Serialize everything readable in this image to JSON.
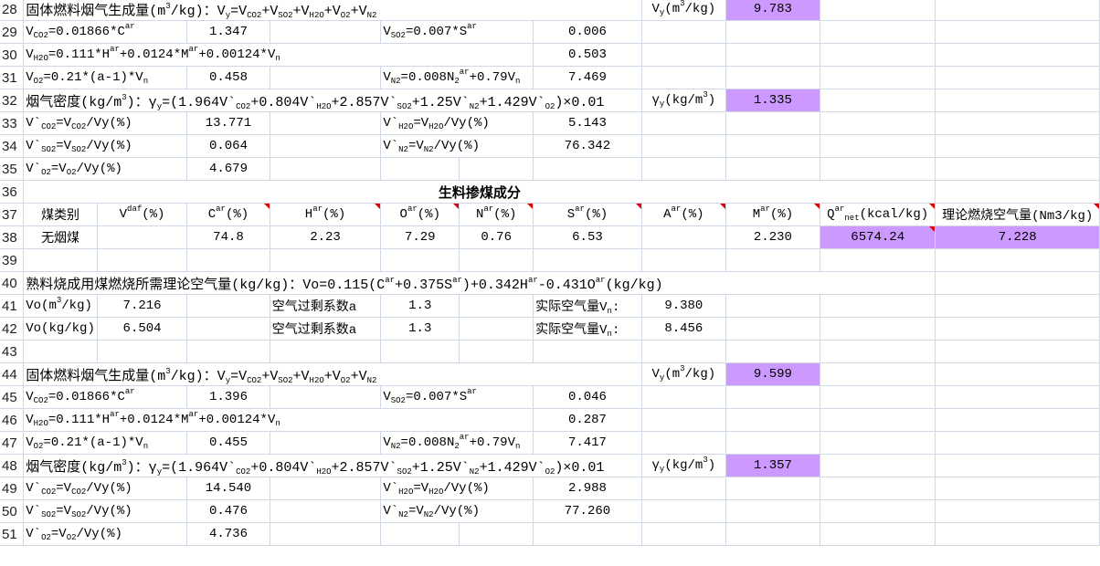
{
  "colors": {
    "highlight": "#cc99ff",
    "comment_marker": "#e00000",
    "grid": "#d0d7e5"
  },
  "rows": [
    {
      "num": "28",
      "cells": [
        {
          "span": 7,
          "text": "固体燃料烟气生成量(m^{3}/kg)：V_{y}=V_{CO2}+V_{SO2}+V_{H2O}+V_{O2}+V_{N2}",
          "kind": "big"
        },
        {
          "text": "V_{y}(m^{3}/kg)",
          "kind": "value"
        },
        {
          "text": "9.783",
          "kind": "value",
          "hl": true
        },
        {
          "text": ""
        },
        {
          "text": ""
        }
      ]
    },
    {
      "num": "29",
      "cells": [
        {
          "span": 2,
          "text": "V_{CO2}=0.01866*C^{ar}",
          "kind": "label"
        },
        {
          "text": "1.347",
          "kind": "value"
        },
        {
          "text": ""
        },
        {
          "span": 2,
          "text": "V_{SO2}=0.007*S^{ar}",
          "kind": "label"
        },
        {
          "text": "0.006",
          "kind": "value"
        },
        {
          "text": ""
        },
        {
          "text": ""
        },
        {
          "text": ""
        },
        {
          "text": ""
        }
      ]
    },
    {
      "num": "30",
      "cells": [
        {
          "span": 6,
          "text": "V_{H2O}=0.111*H^{ar}+0.0124*M^{ar}+0.00124*V_{n}",
          "kind": "label"
        },
        {
          "text": "0.503",
          "kind": "value"
        },
        {
          "text": ""
        },
        {
          "text": ""
        },
        {
          "text": ""
        },
        {
          "text": ""
        }
      ]
    },
    {
      "num": "31",
      "cells": [
        {
          "span": 2,
          "text": "V_{O2}=0.21*(a-1)*V_{n}",
          "kind": "label"
        },
        {
          "text": "0.458",
          "kind": "value"
        },
        {
          "text": ""
        },
        {
          "span": 2,
          "text": "V_{N2}=0.008N_{2}^{ar}+0.79V_{n}",
          "kind": "label"
        },
        {
          "text": "7.469",
          "kind": "value"
        },
        {
          "text": ""
        },
        {
          "text": ""
        },
        {
          "text": ""
        },
        {
          "text": ""
        }
      ]
    },
    {
      "num": "32",
      "cells": [
        {
          "span": 7,
          "text": "烟气密度(kg/m^{3})：γ_{y}=(1.964V`_{CO2}+0.804V`_{H2O}+2.857V`_{SO2}+1.25V`_{N2}+1.429V`_{O2})×0.01",
          "kind": "big"
        },
        {
          "text": "γ_{y}(kg/m^{3})",
          "kind": "value"
        },
        {
          "text": "1.335",
          "kind": "value",
          "hl": true
        },
        {
          "text": ""
        },
        {
          "text": ""
        }
      ]
    },
    {
      "num": "33",
      "cells": [
        {
          "span": 2,
          "text": "V`_{CO2}=V_{CO2}/Vy(%)",
          "kind": "label"
        },
        {
          "text": "13.771",
          "kind": "value"
        },
        {
          "text": ""
        },
        {
          "span": 2,
          "text": "V`_{H2O}=V_{H2O}/Vy(%)",
          "kind": "label"
        },
        {
          "text": "5.143",
          "kind": "value"
        },
        {
          "text": ""
        },
        {
          "text": ""
        },
        {
          "text": ""
        },
        {
          "text": ""
        }
      ]
    },
    {
      "num": "34",
      "cells": [
        {
          "span": 2,
          "text": "V`_{SO2}=V_{SO2}/Vy(%)",
          "kind": "label"
        },
        {
          "text": "0.064",
          "kind": "value"
        },
        {
          "text": ""
        },
        {
          "span": 2,
          "text": "V`_{N2}=V_{N2}/Vy(%)",
          "kind": "label"
        },
        {
          "text": "76.342",
          "kind": "value"
        },
        {
          "text": ""
        },
        {
          "text": ""
        },
        {
          "text": ""
        },
        {
          "text": ""
        }
      ]
    },
    {
      "num": "35",
      "cells": [
        {
          "span": 2,
          "text": "V`_{O2}=V_{O2}/Vy(%)",
          "kind": "label"
        },
        {
          "text": "4.679",
          "kind": "value"
        },
        {
          "text": ""
        },
        {
          "text": ""
        },
        {
          "text": ""
        },
        {
          "text": ""
        },
        {
          "text": ""
        },
        {
          "text": ""
        },
        {
          "text": ""
        },
        {
          "text": ""
        }
      ]
    },
    {
      "num": "36",
      "cells": [
        {
          "span": 10,
          "text": "生料掺煤成分",
          "kind": "title"
        },
        {
          "text": ""
        }
      ]
    },
    {
      "num": "37",
      "cells": [
        {
          "text": "煤类别",
          "kind": "header"
        },
        {
          "text": "V^{daf}(%)",
          "kind": "header"
        },
        {
          "text": "C^{ar}(%)",
          "kind": "header",
          "mark": true
        },
        {
          "text": "H^{ar}(%)",
          "kind": "header",
          "mark": true
        },
        {
          "text": "O^{ar}(%)",
          "kind": "header",
          "mark": true
        },
        {
          "text": "N^{ar}(%)",
          "kind": "header",
          "mark": true
        },
        {
          "text": "S^{ar}(%)",
          "kind": "header",
          "mark": true
        },
        {
          "text": "A^{ar}(%)",
          "kind": "header",
          "mark": true
        },
        {
          "text": "M^{ar}(%)",
          "kind": "header",
          "mark": true
        },
        {
          "text": "Q^{ar}_{net}(kcal/kg)",
          "kind": "header",
          "mark": true
        },
        {
          "text": "理论燃烧空气量(Nm3/kg)",
          "kind": "header",
          "mark": true
        }
      ]
    },
    {
      "num": "38",
      "cells": [
        {
          "text": "无烟煤",
          "kind": "data"
        },
        {
          "text": "",
          "kind": "data"
        },
        {
          "text": "74.8",
          "kind": "data"
        },
        {
          "text": "2.23",
          "kind": "data"
        },
        {
          "text": "7.29",
          "kind": "data"
        },
        {
          "text": "0.76",
          "kind": "data"
        },
        {
          "text": "6.53",
          "kind": "data"
        },
        {
          "text": "",
          "kind": "data"
        },
        {
          "text": "2.230",
          "kind": "data"
        },
        {
          "text": "6574.24",
          "kind": "data",
          "hl": true,
          "mark": true
        },
        {
          "text": "7.228",
          "kind": "data",
          "hl": true
        }
      ]
    },
    {
      "num": "39",
      "cells": [
        {
          "text": ""
        },
        {
          "text": ""
        },
        {
          "text": ""
        },
        {
          "text": ""
        },
        {
          "text": ""
        },
        {
          "text": ""
        },
        {
          "text": ""
        },
        {
          "text": ""
        },
        {
          "text": ""
        },
        {
          "text": ""
        },
        {
          "text": ""
        }
      ]
    },
    {
      "num": "40",
      "cells": [
        {
          "span": 10,
          "text": "熟料烧成用煤燃烧所需理论空气量(kg/kg)：Vo=0.115(C^{ar}+0.375S^{ar})+0.342H^{ar}-0.431O^{ar}(kg/kg)",
          "kind": "big"
        },
        {
          "text": ""
        }
      ]
    },
    {
      "num": "41",
      "cells": [
        {
          "text": "Vo(m^{3}/kg)",
          "kind": "label"
        },
        {
          "text": "7.216",
          "kind": "value"
        },
        {
          "text": ""
        },
        {
          "text": "空气过剩系数a",
          "kind": "label"
        },
        {
          "text": "1.3",
          "kind": "value"
        },
        {
          "text": ""
        },
        {
          "text": "实际空气量V_{n}:",
          "kind": "label"
        },
        {
          "text": "9.380",
          "kind": "value"
        },
        {
          "text": ""
        },
        {
          "text": ""
        },
        {
          "text": ""
        }
      ]
    },
    {
      "num": "42",
      "cells": [
        {
          "text": "Vo(kg/kg)",
          "kind": "label"
        },
        {
          "text": "6.504",
          "kind": "value"
        },
        {
          "text": ""
        },
        {
          "text": "空气过剩系数a",
          "kind": "label"
        },
        {
          "text": "1.3",
          "kind": "value"
        },
        {
          "text": ""
        },
        {
          "text": "实际空气量V_{n}:",
          "kind": "label"
        },
        {
          "text": "8.456",
          "kind": "value"
        },
        {
          "text": ""
        },
        {
          "text": ""
        },
        {
          "text": ""
        }
      ]
    },
    {
      "num": "43",
      "cells": [
        {
          "text": ""
        },
        {
          "text": ""
        },
        {
          "text": ""
        },
        {
          "text": ""
        },
        {
          "text": ""
        },
        {
          "text": ""
        },
        {
          "text": ""
        },
        {
          "text": ""
        },
        {
          "text": ""
        },
        {
          "text": ""
        },
        {
          "text": ""
        }
      ]
    },
    {
      "num": "44",
      "cells": [
        {
          "span": 7,
          "text": "固体燃料烟气生成量(m^{3}/kg)：V_{y}=V_{CO2}+V_{SO2}+V_{H2O}+V_{O2}+V_{N2}",
          "kind": "big"
        },
        {
          "text": "V_{y}(m^{3}/kg)",
          "kind": "value"
        },
        {
          "text": "9.599",
          "kind": "value",
          "hl": true
        },
        {
          "text": ""
        },
        {
          "text": ""
        }
      ]
    },
    {
      "num": "45",
      "cells": [
        {
          "span": 2,
          "text": "V_{CO2}=0.01866*C^{ar}",
          "kind": "label"
        },
        {
          "text": "1.396",
          "kind": "value"
        },
        {
          "text": ""
        },
        {
          "span": 2,
          "text": "V_{SO2}=0.007*S^{ar}",
          "kind": "label"
        },
        {
          "text": "0.046",
          "kind": "value"
        },
        {
          "text": ""
        },
        {
          "text": ""
        },
        {
          "text": ""
        },
        {
          "text": ""
        }
      ]
    },
    {
      "num": "46",
      "cells": [
        {
          "span": 6,
          "text": "V_{H2O}=0.111*H^{ar}+0.0124*M^{ar}+0.00124*V_{n}",
          "kind": "label"
        },
        {
          "text": "0.287",
          "kind": "value"
        },
        {
          "text": ""
        },
        {
          "text": ""
        },
        {
          "text": ""
        },
        {
          "text": ""
        }
      ]
    },
    {
      "num": "47",
      "cells": [
        {
          "span": 2,
          "text": "V_{O2}=0.21*(a-1)*V_{n}",
          "kind": "label"
        },
        {
          "text": "0.455",
          "kind": "value"
        },
        {
          "text": ""
        },
        {
          "span": 2,
          "text": "V_{N2}=0.008N_{2}^{ar}+0.79V_{n}",
          "kind": "label"
        },
        {
          "text": "7.417",
          "kind": "value"
        },
        {
          "text": ""
        },
        {
          "text": ""
        },
        {
          "text": ""
        },
        {
          "text": ""
        }
      ]
    },
    {
      "num": "48",
      "cells": [
        {
          "span": 7,
          "text": "烟气密度(kg/m^{3})：γ_{y}=(1.964V`_{CO2}+0.804V`_{H2O}+2.857V`_{SO2}+1.25V`_{N2}+1.429V`_{O2})×0.01",
          "kind": "big"
        },
        {
          "text": "γ_{y}(kg/m^{3})",
          "kind": "value"
        },
        {
          "text": "1.357",
          "kind": "value",
          "hl": true
        },
        {
          "text": ""
        },
        {
          "text": ""
        }
      ]
    },
    {
      "num": "49",
      "cells": [
        {
          "span": 2,
          "text": "V`_{CO2}=V_{CO2}/Vy(%)",
          "kind": "label"
        },
        {
          "text": "14.540",
          "kind": "value"
        },
        {
          "text": ""
        },
        {
          "span": 2,
          "text": "V`_{H2O}=V_{H2O}/Vy(%)",
          "kind": "label"
        },
        {
          "text": "2.988",
          "kind": "value"
        },
        {
          "text": ""
        },
        {
          "text": ""
        },
        {
          "text": ""
        },
        {
          "text": ""
        }
      ]
    },
    {
      "num": "50",
      "cells": [
        {
          "span": 2,
          "text": "V`_{SO2}=V_{SO2}/Vy(%)",
          "kind": "label"
        },
        {
          "text": "0.476",
          "kind": "value"
        },
        {
          "text": ""
        },
        {
          "span": 2,
          "text": "V`_{N2}=V_{N2}/Vy(%)",
          "kind": "label"
        },
        {
          "text": "77.260",
          "kind": "value"
        },
        {
          "text": ""
        },
        {
          "text": ""
        },
        {
          "text": ""
        },
        {
          "text": ""
        }
      ]
    },
    {
      "num": "51",
      "cells": [
        {
          "span": 2,
          "text": "V`_{O2}=V_{O2}/Vy(%)",
          "kind": "label"
        },
        {
          "text": "4.736",
          "kind": "value"
        },
        {
          "text": ""
        },
        {
          "text": ""
        },
        {
          "text": ""
        },
        {
          "text": ""
        },
        {
          "text": ""
        },
        {
          "text": ""
        },
        {
          "text": ""
        },
        {
          "text": ""
        }
      ]
    }
  ]
}
